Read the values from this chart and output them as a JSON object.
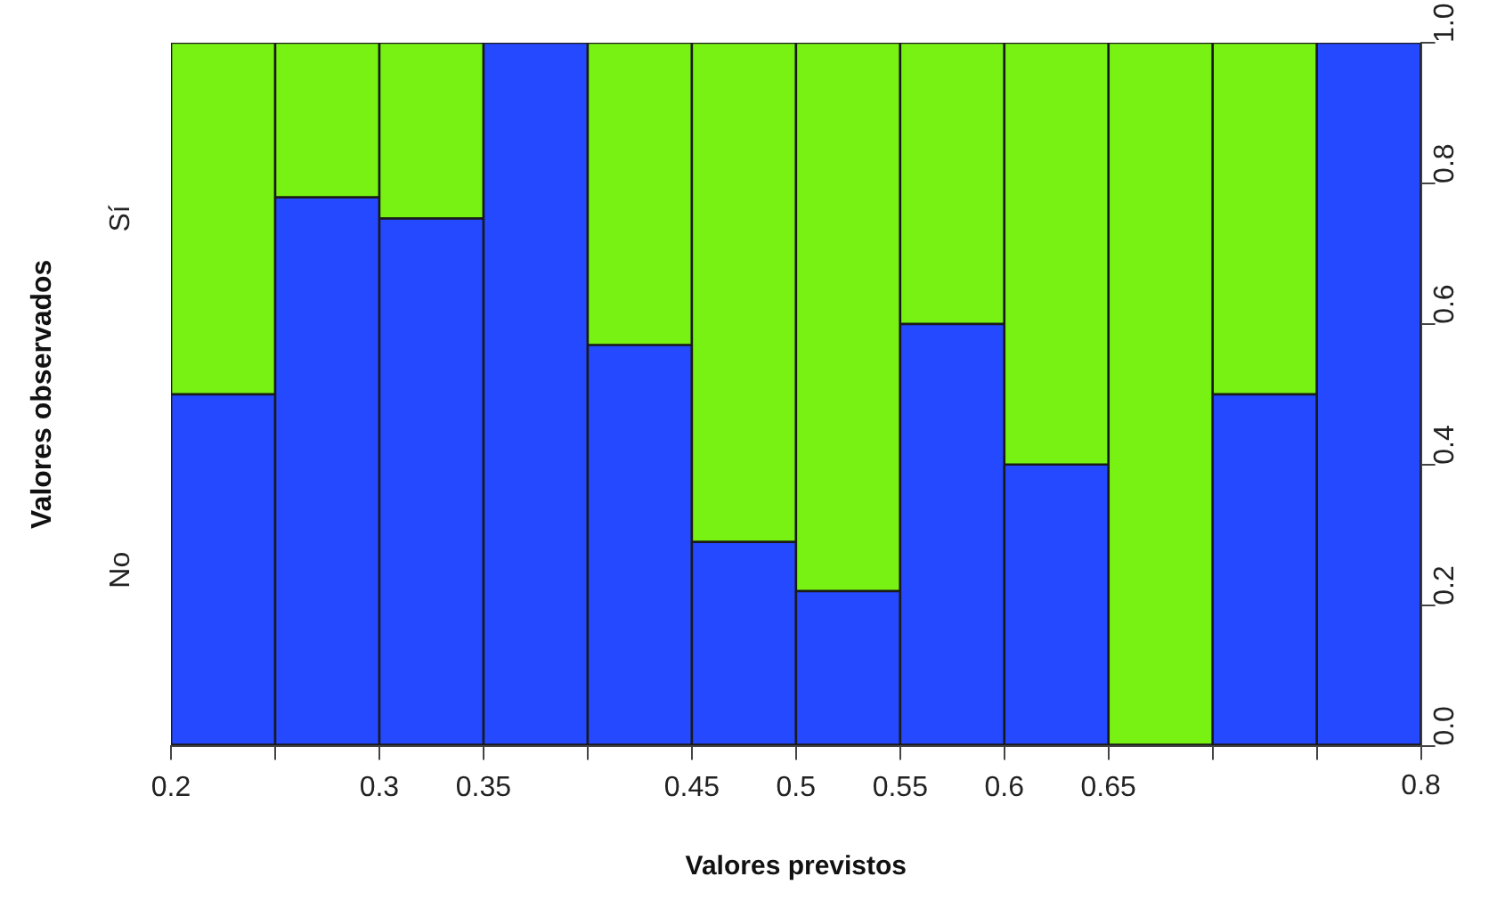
{
  "chart_data": {
    "type": "bar",
    "stacked": true,
    "xlabel": "Valores previstos",
    "ylabel": "Valores observados",
    "categories": [
      "0.2",
      null,
      "0.3",
      "0.35",
      null,
      "0.45",
      "0.5",
      "0.55",
      "0.6",
      "0.65",
      null,
      null
    ],
    "annotations": [
      "0.8"
    ],
    "ylim": [
      0,
      1
    ],
    "yticks": [
      {
        "value": 0,
        "label": "0.0"
      },
      0.2,
      0.4,
      0.6,
      0.8,
      {
        "value": 1,
        "label": "1.0"
      }
    ],
    "series": [
      {
        "name": "No",
        "color": "#2449ff",
        "values": [
          0.5,
          0.78,
          0.75,
          1,
          0.57,
          0.29,
          0.22,
          0.6,
          0.4,
          0,
          0.5,
          1
        ]
      },
      {
        "name": "Sí",
        "color": "#77f213",
        "values": [
          0.5,
          0.22,
          0.25,
          0,
          0.43,
          0.71,
          0.78,
          0.4,
          0.6,
          1,
          0.5,
          0
        ]
      }
    ],
    "grid": false,
    "legend": false
  }
}
